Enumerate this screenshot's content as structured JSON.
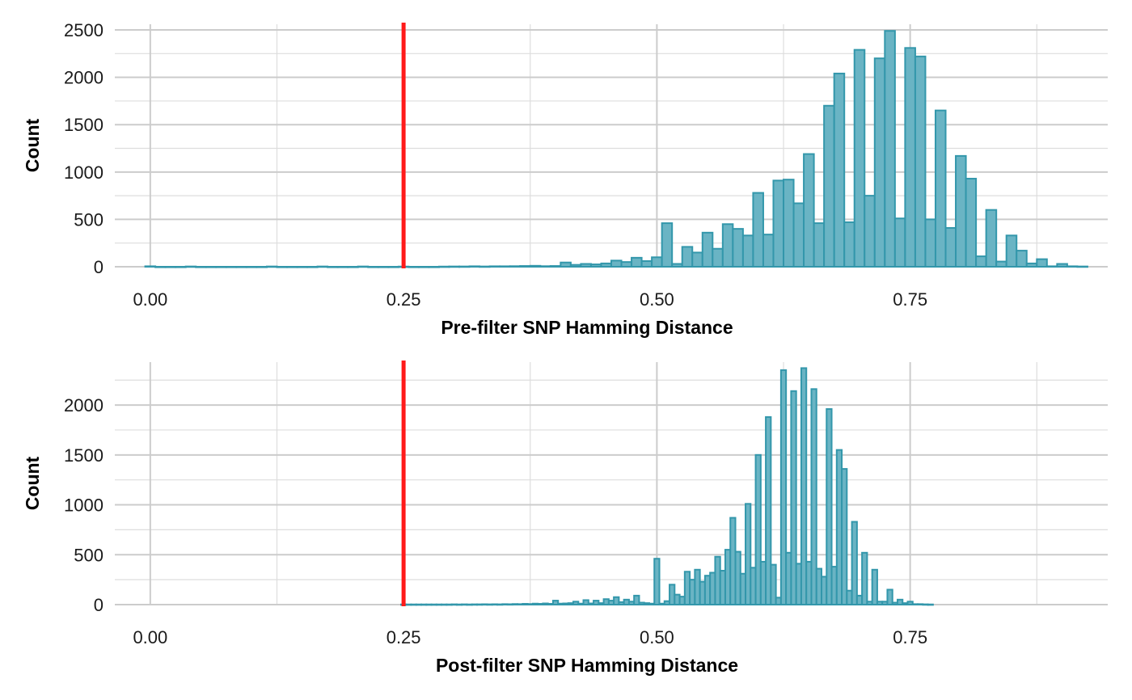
{
  "colors": {
    "bar_fill": "#6ab4c4",
    "bar_stroke": "#3397ab",
    "threshold_line": "#ff1a1a",
    "grid": "#cccccc"
  },
  "chart_data": [
    {
      "type": "bar",
      "subtype": "histogram",
      "xlabel": "Pre-filter SNP Hamming Distance",
      "ylabel": "Count",
      "xlim": [
        -0.035,
        0.945
      ],
      "ylim": [
        0,
        2560
      ],
      "x_ticks": [
        0.0,
        0.25,
        0.5,
        0.75
      ],
      "x_tick_labels": [
        "0.00",
        "0.25",
        "0.50",
        "0.75"
      ],
      "y_ticks": [
        0,
        500,
        1000,
        1500,
        2000,
        2500
      ],
      "y_tick_labels": [
        "0",
        "500",
        "1000",
        "1500",
        "2000",
        "2500"
      ],
      "grid": true,
      "bin_width": 0.01,
      "vline": 0.25,
      "bins": [
        {
          "x": 0.0,
          "y": 5
        },
        {
          "x": 0.01,
          "y": 0
        },
        {
          "x": 0.02,
          "y": 0
        },
        {
          "x": 0.03,
          "y": 0
        },
        {
          "x": 0.04,
          "y": 3
        },
        {
          "x": 0.05,
          "y": 0
        },
        {
          "x": 0.06,
          "y": 0
        },
        {
          "x": 0.07,
          "y": 0
        },
        {
          "x": 0.08,
          "y": 0
        },
        {
          "x": 0.09,
          "y": 0
        },
        {
          "x": 0.1,
          "y": 0
        },
        {
          "x": 0.11,
          "y": 0
        },
        {
          "x": 0.12,
          "y": 3
        },
        {
          "x": 0.13,
          "y": 0
        },
        {
          "x": 0.14,
          "y": 0
        },
        {
          "x": 0.15,
          "y": 0
        },
        {
          "x": 0.16,
          "y": 0
        },
        {
          "x": 0.17,
          "y": 3
        },
        {
          "x": 0.18,
          "y": 0
        },
        {
          "x": 0.19,
          "y": 0
        },
        {
          "x": 0.2,
          "y": 0
        },
        {
          "x": 0.21,
          "y": 3
        },
        {
          "x": 0.22,
          "y": 0
        },
        {
          "x": 0.23,
          "y": 0
        },
        {
          "x": 0.24,
          "y": 0
        },
        {
          "x": 0.25,
          "y": 2
        },
        {
          "x": 0.26,
          "y": 0
        },
        {
          "x": 0.27,
          "y": 0
        },
        {
          "x": 0.28,
          "y": 0
        },
        {
          "x": 0.29,
          "y": 2
        },
        {
          "x": 0.3,
          "y": 3
        },
        {
          "x": 0.31,
          "y": 3
        },
        {
          "x": 0.32,
          "y": 5
        },
        {
          "x": 0.33,
          "y": 3
        },
        {
          "x": 0.34,
          "y": 5
        },
        {
          "x": 0.35,
          "y": 5
        },
        {
          "x": 0.36,
          "y": 6
        },
        {
          "x": 0.37,
          "y": 8
        },
        {
          "x": 0.38,
          "y": 10
        },
        {
          "x": 0.39,
          "y": 6
        },
        {
          "x": 0.4,
          "y": 8
        },
        {
          "x": 0.41,
          "y": 45
        },
        {
          "x": 0.42,
          "y": 20
        },
        {
          "x": 0.43,
          "y": 30
        },
        {
          "x": 0.44,
          "y": 25
        },
        {
          "x": 0.45,
          "y": 35
        },
        {
          "x": 0.46,
          "y": 65
        },
        {
          "x": 0.47,
          "y": 50
        },
        {
          "x": 0.48,
          "y": 95
        },
        {
          "x": 0.49,
          "y": 60
        },
        {
          "x": 0.5,
          "y": 100
        },
        {
          "x": 0.51,
          "y": 460
        },
        {
          "x": 0.52,
          "y": 30
        },
        {
          "x": 0.53,
          "y": 210
        },
        {
          "x": 0.54,
          "y": 150
        },
        {
          "x": 0.55,
          "y": 360
        },
        {
          "x": 0.56,
          "y": 190
        },
        {
          "x": 0.57,
          "y": 450
        },
        {
          "x": 0.58,
          "y": 400
        },
        {
          "x": 0.59,
          "y": 330
        },
        {
          "x": 0.6,
          "y": 780
        },
        {
          "x": 0.61,
          "y": 340
        },
        {
          "x": 0.62,
          "y": 910
        },
        {
          "x": 0.63,
          "y": 920
        },
        {
          "x": 0.64,
          "y": 670
        },
        {
          "x": 0.65,
          "y": 1190
        },
        {
          "x": 0.66,
          "y": 460
        },
        {
          "x": 0.67,
          "y": 1700
        },
        {
          "x": 0.68,
          "y": 2040
        },
        {
          "x": 0.69,
          "y": 470
        },
        {
          "x": 0.7,
          "y": 2290
        },
        {
          "x": 0.71,
          "y": 750
        },
        {
          "x": 0.72,
          "y": 2200
        },
        {
          "x": 0.73,
          "y": 2490
        },
        {
          "x": 0.74,
          "y": 510
        },
        {
          "x": 0.75,
          "y": 2310
        },
        {
          "x": 0.76,
          "y": 2220
        },
        {
          "x": 0.77,
          "y": 500
        },
        {
          "x": 0.78,
          "y": 1650
        },
        {
          "x": 0.79,
          "y": 410
        },
        {
          "x": 0.8,
          "y": 1170
        },
        {
          "x": 0.81,
          "y": 930
        },
        {
          "x": 0.82,
          "y": 110
        },
        {
          "x": 0.83,
          "y": 600
        },
        {
          "x": 0.84,
          "y": 55
        },
        {
          "x": 0.85,
          "y": 330
        },
        {
          "x": 0.86,
          "y": 170
        },
        {
          "x": 0.87,
          "y": 35
        },
        {
          "x": 0.88,
          "y": 80
        },
        {
          "x": 0.89,
          "y": 5
        },
        {
          "x": 0.9,
          "y": 30
        },
        {
          "x": 0.91,
          "y": 5
        },
        {
          "x": 0.92,
          "y": 3
        }
      ]
    },
    {
      "type": "bar",
      "subtype": "histogram",
      "xlabel": "Post-filter SNP Hamming Distance",
      "ylabel": "Count",
      "xlim": [
        -0.035,
        0.945
      ],
      "ylim": [
        0,
        2430
      ],
      "x_ticks": [
        0.0,
        0.25,
        0.5,
        0.75
      ],
      "x_tick_labels": [
        "0.00",
        "0.25",
        "0.50",
        "0.75"
      ],
      "y_ticks": [
        0,
        500,
        1000,
        1500,
        2000
      ],
      "y_tick_labels": [
        "0",
        "500",
        "1000",
        "1500",
        "2000"
      ],
      "grid": true,
      "bin_width": 0.005,
      "vline": 0.25,
      "bins": [
        {
          "x": 0.25,
          "y": 2
        },
        {
          "x": 0.255,
          "y": 2
        },
        {
          "x": 0.26,
          "y": 2
        },
        {
          "x": 0.265,
          "y": 2
        },
        {
          "x": 0.27,
          "y": 2
        },
        {
          "x": 0.275,
          "y": 2
        },
        {
          "x": 0.28,
          "y": 2
        },
        {
          "x": 0.285,
          "y": 2
        },
        {
          "x": 0.29,
          "y": 2
        },
        {
          "x": 0.295,
          "y": 2
        },
        {
          "x": 0.3,
          "y": 3
        },
        {
          "x": 0.305,
          "y": 2
        },
        {
          "x": 0.31,
          "y": 3
        },
        {
          "x": 0.315,
          "y": 2
        },
        {
          "x": 0.32,
          "y": 3
        },
        {
          "x": 0.325,
          "y": 3
        },
        {
          "x": 0.33,
          "y": 4
        },
        {
          "x": 0.335,
          "y": 3
        },
        {
          "x": 0.34,
          "y": 4
        },
        {
          "x": 0.345,
          "y": 3
        },
        {
          "x": 0.35,
          "y": 5
        },
        {
          "x": 0.355,
          "y": 4
        },
        {
          "x": 0.36,
          "y": 6
        },
        {
          "x": 0.365,
          "y": 5
        },
        {
          "x": 0.37,
          "y": 8
        },
        {
          "x": 0.375,
          "y": 6
        },
        {
          "x": 0.38,
          "y": 10
        },
        {
          "x": 0.385,
          "y": 8
        },
        {
          "x": 0.39,
          "y": 12
        },
        {
          "x": 0.395,
          "y": 8
        },
        {
          "x": 0.4,
          "y": 40
        },
        {
          "x": 0.405,
          "y": 10
        },
        {
          "x": 0.41,
          "y": 12
        },
        {
          "x": 0.415,
          "y": 15
        },
        {
          "x": 0.42,
          "y": 30
        },
        {
          "x": 0.425,
          "y": 10
        },
        {
          "x": 0.43,
          "y": 45
        },
        {
          "x": 0.435,
          "y": 12
        },
        {
          "x": 0.44,
          "y": 40
        },
        {
          "x": 0.445,
          "y": 15
        },
        {
          "x": 0.45,
          "y": 55
        },
        {
          "x": 0.455,
          "y": 40
        },
        {
          "x": 0.46,
          "y": 75
        },
        {
          "x": 0.465,
          "y": 25
        },
        {
          "x": 0.47,
          "y": 50
        },
        {
          "x": 0.475,
          "y": 30
        },
        {
          "x": 0.48,
          "y": 90
        },
        {
          "x": 0.485,
          "y": 20
        },
        {
          "x": 0.49,
          "y": 15
        },
        {
          "x": 0.495,
          "y": 10
        },
        {
          "x": 0.5,
          "y": 460
        },
        {
          "x": 0.505,
          "y": 10
        },
        {
          "x": 0.51,
          "y": 35
        },
        {
          "x": 0.515,
          "y": 200
        },
        {
          "x": 0.52,
          "y": 100
        },
        {
          "x": 0.525,
          "y": 80
        },
        {
          "x": 0.53,
          "y": 330
        },
        {
          "x": 0.535,
          "y": 250
        },
        {
          "x": 0.54,
          "y": 350
        },
        {
          "x": 0.545,
          "y": 230
        },
        {
          "x": 0.55,
          "y": 290
        },
        {
          "x": 0.555,
          "y": 320
        },
        {
          "x": 0.56,
          "y": 480
        },
        {
          "x": 0.565,
          "y": 340
        },
        {
          "x": 0.57,
          "y": 550
        },
        {
          "x": 0.575,
          "y": 870
        },
        {
          "x": 0.58,
          "y": 530
        },
        {
          "x": 0.585,
          "y": 310
        },
        {
          "x": 0.59,
          "y": 1010
        },
        {
          "x": 0.595,
          "y": 370
        },
        {
          "x": 0.6,
          "y": 1500
        },
        {
          "x": 0.605,
          "y": 430
        },
        {
          "x": 0.61,
          "y": 1880
        },
        {
          "x": 0.615,
          "y": 400
        },
        {
          "x": 0.62,
          "y": 70
        },
        {
          "x": 0.625,
          "y": 2350
        },
        {
          "x": 0.63,
          "y": 520
        },
        {
          "x": 0.635,
          "y": 2140
        },
        {
          "x": 0.64,
          "y": 410
        },
        {
          "x": 0.645,
          "y": 2370
        },
        {
          "x": 0.65,
          "y": 430
        },
        {
          "x": 0.655,
          "y": 2160
        },
        {
          "x": 0.66,
          "y": 360
        },
        {
          "x": 0.665,
          "y": 280
        },
        {
          "x": 0.67,
          "y": 1960
        },
        {
          "x": 0.675,
          "y": 380
        },
        {
          "x": 0.68,
          "y": 1550
        },
        {
          "x": 0.685,
          "y": 1360
        },
        {
          "x": 0.69,
          "y": 140
        },
        {
          "x": 0.695,
          "y": 830
        },
        {
          "x": 0.7,
          "y": 90
        },
        {
          "x": 0.705,
          "y": 520
        },
        {
          "x": 0.71,
          "y": 30
        },
        {
          "x": 0.715,
          "y": 350
        },
        {
          "x": 0.72,
          "y": 30
        },
        {
          "x": 0.725,
          "y": 30
        },
        {
          "x": 0.73,
          "y": 150
        },
        {
          "x": 0.735,
          "y": 20
        },
        {
          "x": 0.74,
          "y": 50
        },
        {
          "x": 0.745,
          "y": 15
        },
        {
          "x": 0.75,
          "y": 30
        },
        {
          "x": 0.755,
          "y": 5
        },
        {
          "x": 0.76,
          "y": 5
        },
        {
          "x": 0.765,
          "y": 3
        },
        {
          "x": 0.77,
          "y": 2
        }
      ]
    }
  ]
}
